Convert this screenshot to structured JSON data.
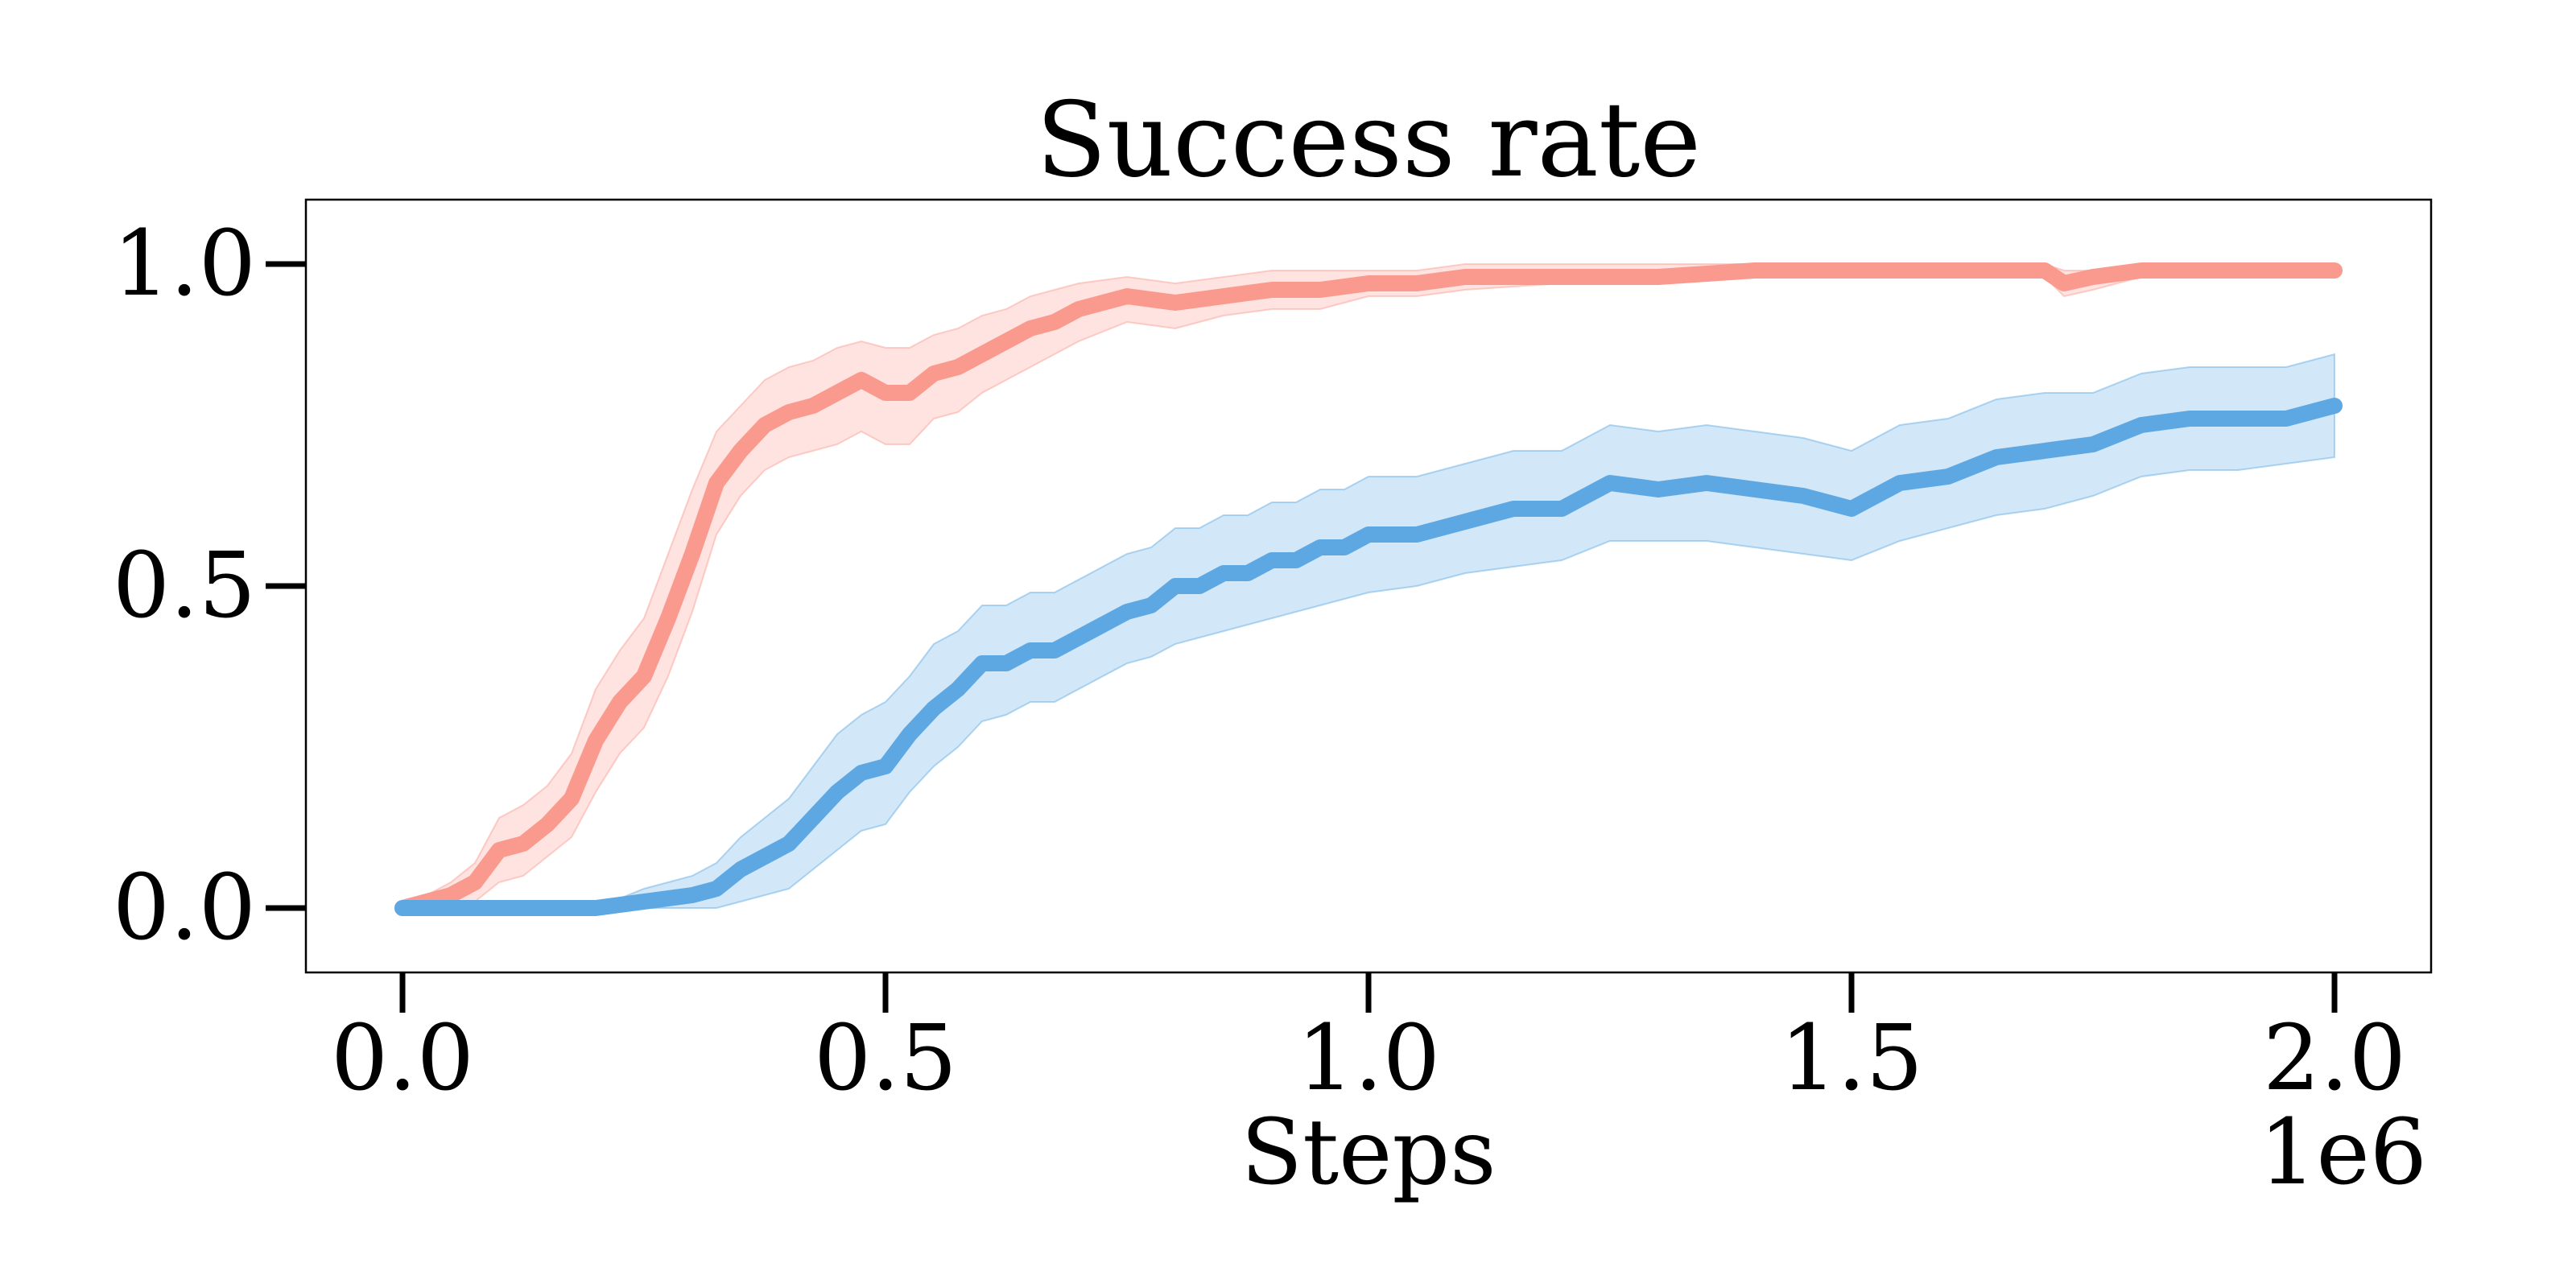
{
  "chart_data": {
    "type": "line",
    "title": "Success rate",
    "xlabel": "Steps",
    "ylabel": "",
    "x_offset_text": "1e6",
    "xlim": [
      -0.1,
      2.1
    ],
    "ylim": [
      -0.1,
      1.1
    ],
    "x_ticks": [
      0.0,
      0.5,
      1.0,
      1.5,
      2.0
    ],
    "x_tick_labels": [
      "0.0",
      "0.5",
      "1.0",
      "1.5",
      "2.0"
    ],
    "y_ticks": [
      0.0,
      0.5,
      1.0
    ],
    "y_tick_labels": [
      "0.0",
      "0.5",
      "1.0"
    ],
    "grid": false,
    "legend": "none",
    "series": [
      {
        "color": "#FA9A8E",
        "band_color": "#FA9A8E",
        "x": [
          0.0,
          0.025,
          0.05,
          0.075,
          0.1,
          0.125,
          0.15,
          0.175,
          0.2,
          0.225,
          0.25,
          0.275,
          0.3,
          0.325,
          0.35,
          0.375,
          0.4,
          0.425,
          0.45,
          0.475,
          0.5,
          0.525,
          0.55,
          0.575,
          0.6,
          0.625,
          0.65,
          0.675,
          0.7,
          0.75,
          0.8,
          0.85,
          0.9,
          0.95,
          1.0,
          1.05,
          1.1,
          1.2,
          1.3,
          1.4,
          1.5,
          1.6,
          1.65,
          1.7,
          1.72,
          1.75,
          1.8,
          1.9,
          2.0
        ],
        "mean": [
          0.0,
          0.01,
          0.02,
          0.04,
          0.09,
          0.1,
          0.13,
          0.17,
          0.26,
          0.32,
          0.36,
          0.45,
          0.55,
          0.66,
          0.71,
          0.75,
          0.77,
          0.78,
          0.8,
          0.82,
          0.8,
          0.8,
          0.83,
          0.84,
          0.86,
          0.88,
          0.9,
          0.91,
          0.93,
          0.95,
          0.94,
          0.95,
          0.96,
          0.96,
          0.97,
          0.97,
          0.98,
          0.98,
          0.98,
          0.99,
          0.99,
          0.99,
          0.99,
          0.99,
          0.97,
          0.98,
          0.99,
          0.99,
          0.99
        ],
        "lower": [
          0.0,
          0.0,
          0.0,
          0.01,
          0.04,
          0.05,
          0.08,
          0.11,
          0.18,
          0.24,
          0.28,
          0.36,
          0.46,
          0.58,
          0.64,
          0.68,
          0.7,
          0.71,
          0.72,
          0.74,
          0.72,
          0.72,
          0.76,
          0.77,
          0.8,
          0.82,
          0.84,
          0.86,
          0.88,
          0.91,
          0.9,
          0.92,
          0.93,
          0.93,
          0.95,
          0.95,
          0.96,
          0.97,
          0.97,
          0.98,
          0.98,
          0.98,
          0.98,
          0.98,
          0.95,
          0.96,
          0.98,
          0.98,
          0.98
        ],
        "upper": [
          0.01,
          0.02,
          0.04,
          0.07,
          0.14,
          0.16,
          0.19,
          0.24,
          0.34,
          0.4,
          0.45,
          0.55,
          0.65,
          0.74,
          0.78,
          0.82,
          0.84,
          0.85,
          0.87,
          0.88,
          0.87,
          0.87,
          0.89,
          0.9,
          0.92,
          0.93,
          0.95,
          0.96,
          0.97,
          0.98,
          0.97,
          0.98,
          0.99,
          0.99,
          0.99,
          0.99,
          1.0,
          1.0,
          1.0,
          1.0,
          1.0,
          1.0,
          1.0,
          1.0,
          0.99,
          0.99,
          1.0,
          1.0,
          1.0
        ]
      },
      {
        "color": "#5DA8E3",
        "band_color": "#5DA8E3",
        "x": [
          0.0,
          0.05,
          0.1,
          0.15,
          0.2,
          0.225,
          0.25,
          0.275,
          0.3,
          0.325,
          0.35,
          0.375,
          0.4,
          0.425,
          0.45,
          0.475,
          0.5,
          0.525,
          0.55,
          0.575,
          0.6,
          0.625,
          0.65,
          0.675,
          0.7,
          0.725,
          0.75,
          0.775,
          0.8,
          0.825,
          0.85,
          0.875,
          0.9,
          0.925,
          0.95,
          0.975,
          1.0,
          1.05,
          1.1,
          1.15,
          1.2,
          1.25,
          1.3,
          1.35,
          1.4,
          1.45,
          1.5,
          1.55,
          1.6,
          1.65,
          1.7,
          1.75,
          1.8,
          1.85,
          1.9,
          1.95,
          2.0
        ],
        "mean": [
          0.0,
          0.0,
          0.0,
          0.0,
          0.0,
          0.005,
          0.01,
          0.015,
          0.02,
          0.03,
          0.06,
          0.08,
          0.1,
          0.14,
          0.18,
          0.21,
          0.22,
          0.27,
          0.31,
          0.34,
          0.38,
          0.38,
          0.4,
          0.4,
          0.42,
          0.44,
          0.46,
          0.47,
          0.5,
          0.5,
          0.52,
          0.52,
          0.54,
          0.54,
          0.56,
          0.56,
          0.58,
          0.58,
          0.6,
          0.62,
          0.62,
          0.66,
          0.65,
          0.66,
          0.65,
          0.64,
          0.62,
          0.66,
          0.67,
          0.7,
          0.71,
          0.72,
          0.75,
          0.76,
          0.76,
          0.76,
          0.78
        ],
        "lower": [
          0.0,
          0.0,
          0.0,
          0.0,
          0.0,
          0.0,
          0.0,
          0.0,
          0.0,
          0.0,
          0.01,
          0.02,
          0.03,
          0.06,
          0.09,
          0.12,
          0.13,
          0.18,
          0.22,
          0.25,
          0.29,
          0.3,
          0.32,
          0.32,
          0.34,
          0.36,
          0.38,
          0.39,
          0.41,
          0.42,
          0.43,
          0.44,
          0.45,
          0.46,
          0.47,
          0.48,
          0.49,
          0.5,
          0.52,
          0.53,
          0.54,
          0.57,
          0.57,
          0.57,
          0.56,
          0.55,
          0.54,
          0.57,
          0.59,
          0.61,
          0.62,
          0.64,
          0.67,
          0.68,
          0.68,
          0.69,
          0.7
        ],
        "upper": [
          0.0,
          0.0,
          0.0,
          0.0,
          0.01,
          0.015,
          0.03,
          0.04,
          0.05,
          0.07,
          0.11,
          0.14,
          0.17,
          0.22,
          0.27,
          0.3,
          0.32,
          0.36,
          0.41,
          0.43,
          0.47,
          0.47,
          0.49,
          0.49,
          0.51,
          0.53,
          0.55,
          0.56,
          0.59,
          0.59,
          0.61,
          0.61,
          0.63,
          0.63,
          0.65,
          0.65,
          0.67,
          0.67,
          0.69,
          0.71,
          0.71,
          0.75,
          0.74,
          0.75,
          0.74,
          0.73,
          0.71,
          0.75,
          0.76,
          0.79,
          0.8,
          0.8,
          0.83,
          0.84,
          0.84,
          0.84,
          0.86
        ]
      }
    ]
  }
}
